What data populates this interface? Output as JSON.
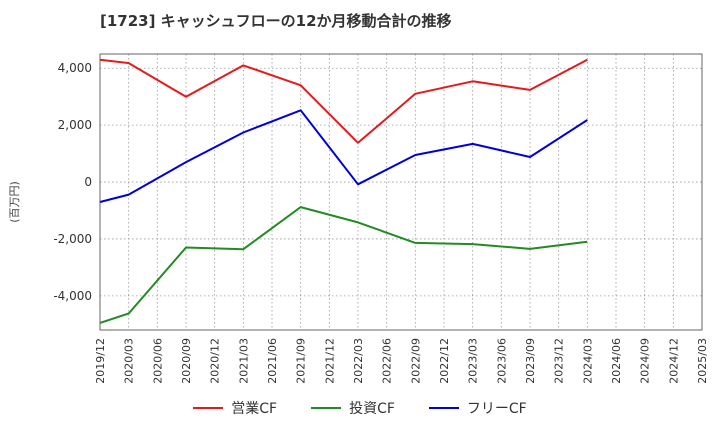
{
  "chart_data": {
    "type": "line",
    "title": "[1723]  キャッシュフローの12か月移動合計の推移",
    "ylabel": "(百万円)",
    "xlabel": "",
    "ylim": [
      -5200,
      4500
    ],
    "yticks": [
      -4000,
      -2000,
      0,
      2000,
      4000
    ],
    "ytick_labels": [
      "-4,000",
      "-2,000",
      "0",
      "2,000",
      "4,000"
    ],
    "xticks": [
      "2019/12",
      "2020/03",
      "2020/06",
      "2020/09",
      "2020/12",
      "2021/03",
      "2021/06",
      "2021/09",
      "2021/12",
      "2022/03",
      "2022/06",
      "2022/09",
      "2022/12",
      "2023/03",
      "2023/06",
      "2023/09",
      "2023/12",
      "2024/03",
      "2024/06",
      "2024/09",
      "2024/12",
      "2025/03"
    ],
    "x": [
      "2019/12",
      "2020/03",
      "2020/09",
      "2021/03",
      "2021/09",
      "2022/03",
      "2022/09",
      "2023/03",
      "2023/09",
      "2024/03"
    ],
    "series": [
      {
        "name": "営業CF",
        "color": "#e41a1c",
        "values": [
          4300,
          4180,
          3000,
          4100,
          3400,
          1380,
          3100,
          3540,
          3240,
          4300
        ]
      },
      {
        "name": "投資CF",
        "color": "#228b22",
        "values": [
          -4950,
          -4620,
          -2300,
          -2360,
          -880,
          -1420,
          -2140,
          -2180,
          -2350,
          -2100
        ]
      },
      {
        "name": "フリーCF",
        "color": "#0000dd",
        "values": [
          -700,
          -440,
          700,
          1740,
          2520,
          -80,
          950,
          1340,
          880,
          2180
        ]
      }
    ],
    "grid": true,
    "legend_position": "bottom"
  }
}
